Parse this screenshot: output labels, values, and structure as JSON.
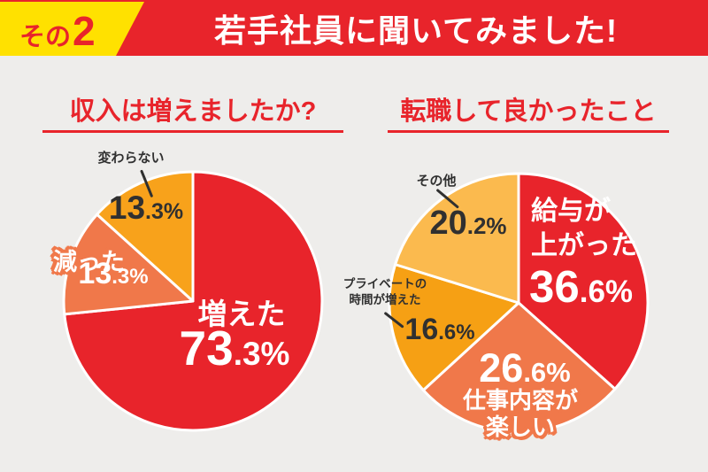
{
  "header": {
    "badge_prefix": "その",
    "badge_number": "2",
    "title": "若手社員に聞いてみました!"
  },
  "colors": {
    "accent_red": "#e8242b",
    "badge_yellow": "#ffe100",
    "background_gray": "#eeedeb",
    "salmon_orange": "#f0784a",
    "amber_orange": "#f8a21b",
    "deep_amber": "#f6a014",
    "light_amber": "#fab94e",
    "dark_text": "#303030"
  },
  "chart_data": [
    {
      "type": "pie",
      "title": "収入は増えましたか?",
      "legend_position": "labels-on-chart",
      "start_angle_deg": 0,
      "direction": "clockwise",
      "slices": [
        {
          "label": "増えた",
          "value": 73.3,
          "pct_big": "73",
          "pct_small": ".3%",
          "color": "#e8242b",
          "label_style": "white-inside"
        },
        {
          "label": "減った",
          "value": 13.3,
          "pct_big": "13",
          "pct_small": ".3%",
          "color": "#f0784a",
          "label_style": "white-outlined-outside"
        },
        {
          "label": "変わらない",
          "value": 13.3,
          "pct_big": "13",
          "pct_small": ".3%",
          "color": "#f8a21b",
          "label_style": "dark-callout"
        }
      ]
    },
    {
      "type": "pie",
      "title": "転職して良かったこと",
      "legend_position": "labels-on-chart",
      "start_angle_deg": 0,
      "direction": "clockwise",
      "slices": [
        {
          "label": "給与が上がった",
          "lines": [
            "給与が",
            "上がった"
          ],
          "value": 36.6,
          "pct_big": "36",
          "pct_small": ".6%",
          "color": "#e8242b",
          "label_style": "white-inside"
        },
        {
          "label": "仕事内容が楽しい",
          "lines": [
            "仕事内容が",
            "楽しい"
          ],
          "value": 26.6,
          "pct_big": "26",
          "pct_small": ".6%",
          "color": "#f0784a",
          "label_style": "white-outlined"
        },
        {
          "label": "プライベートの時間が増えた",
          "lines": [
            "プライベートの",
            "時間が増えた"
          ],
          "value": 16.6,
          "pct_big": "16",
          "pct_small": ".6%",
          "color": "#f6a014",
          "label_style": "dark-callout"
        },
        {
          "label": "その他",
          "value": 20.2,
          "pct_big": "20",
          "pct_small": ".2%",
          "color": "#fbba4e",
          "label_style": "dark-callout"
        }
      ]
    }
  ]
}
